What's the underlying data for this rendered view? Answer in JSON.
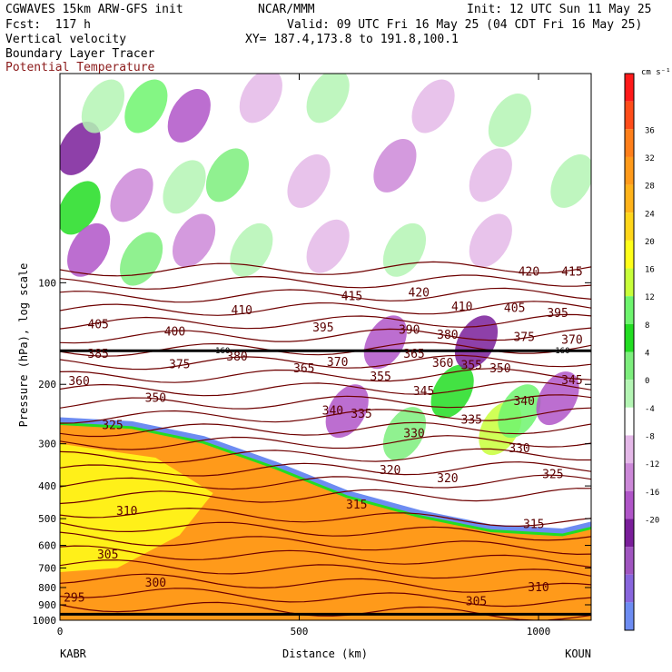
{
  "header": {
    "model": "CGWAVES 15km ARW-GFS init",
    "org": "NCAR/MMM",
    "init": "Init: 12 UTC Sun 11 May 25",
    "fcst": "Fcst:  117 h",
    "valid": "Valid: 09 UTC Fri 16 May 25 (04 CDT Fri 16 May 25)",
    "field1": "Vertical velocity",
    "xy": "XY= 187.4,173.8 to 191.8,100.1",
    "field2": "Boundary Layer Tracer",
    "field3": "Potential Temperature",
    "field3_color": "#8b1a1a"
  },
  "chart_data": {
    "type": "heatmap",
    "title": "Vertical velocity / Boundary Layer Tracer / Potential Temperature cross section",
    "xlabel": "Distance (km)",
    "ylabel": "Pressure (hPa), log scale",
    "x_ticks": [
      "0",
      "500",
      "1000"
    ],
    "x_tick_values": [
      0,
      500,
      1000
    ],
    "xlim": [
      0,
      1110
    ],
    "y_ticks": [
      "100",
      "200",
      "300",
      "400",
      "500",
      "600",
      "700",
      "800",
      "900",
      "1000"
    ],
    "y_tick_values": [
      100,
      200,
      300,
      400,
      500,
      600,
      700,
      800,
      900,
      1000
    ],
    "ylim": [
      1000,
      24
    ],
    "x_endpoints": {
      "left": "KABR",
      "right": "KOUN"
    },
    "colorbar": {
      "unit": "cm s⁻¹",
      "labels": [
        "36",
        "32",
        "28",
        "24",
        "20",
        "16",
        "12",
        "8",
        "4",
        "0",
        "-4",
        "-8",
        "-12",
        "-16",
        "-20"
      ],
      "colors": [
        "#ff1a1a",
        "#ff4d1a",
        "#ff7f1a",
        "#ff9a1a",
        "#ffb31a",
        "#ffd61a",
        "#ffff1a",
        "#c8ff3a",
        "#6ef56e",
        "#22dd22",
        "#7dee7d",
        "#b4f5b4",
        "#ffffff",
        "#e4b8e8",
        "#cc88d8",
        "#b055c8",
        "#7a1e9a",
        "#a055c0",
        "#8866dd",
        "#6d8cf2"
      ]
    },
    "theta_contours": {
      "levels": [
        295,
        300,
        305,
        310,
        315,
        320,
        325,
        330,
        335,
        340,
        345,
        350,
        355,
        360,
        365,
        370,
        375,
        380,
        385,
        390,
        395,
        400,
        405,
        410,
        415,
        420
      ],
      "labels": [
        {
          "text": "295",
          "x": 30,
          "p": 860
        },
        {
          "text": "300",
          "x": 200,
          "p": 775
        },
        {
          "text": "305",
          "x": 100,
          "p": 640
        },
        {
          "text": "305",
          "x": 870,
          "p": 880
        },
        {
          "text": "310",
          "x": 140,
          "p": 475
        },
        {
          "text": "310",
          "x": 1000,
          "p": 800
        },
        {
          "text": "315",
          "x": 620,
          "p": 455
        },
        {
          "text": "315",
          "x": 990,
          "p": 520
        },
        {
          "text": "320",
          "x": 690,
          "p": 360
        },
        {
          "text": "320",
          "x": 810,
          "p": 380
        },
        {
          "text": "325",
          "x": 110,
          "p": 265
        },
        {
          "text": "325",
          "x": 1030,
          "p": 370
        },
        {
          "text": "330",
          "x": 740,
          "p": 280
        },
        {
          "text": "330",
          "x": 960,
          "p": 310
        },
        {
          "text": "335",
          "x": 630,
          "p": 245
        },
        {
          "text": "335",
          "x": 860,
          "p": 255
        },
        {
          "text": "340",
          "x": 570,
          "p": 240
        },
        {
          "text": "340",
          "x": 970,
          "p": 225
        },
        {
          "text": "345",
          "x": 760,
          "p": 210
        },
        {
          "text": "345",
          "x": 1070,
          "p": 195
        },
        {
          "text": "350",
          "x": 200,
          "p": 220
        },
        {
          "text": "350",
          "x": 920,
          "p": 180
        },
        {
          "text": "355",
          "x": 670,
          "p": 190
        },
        {
          "text": "355",
          "x": 860,
          "p": 176
        },
        {
          "text": "360",
          "x": 40,
          "p": 196
        },
        {
          "text": "360",
          "x": 800,
          "p": 173
        },
        {
          "text": "365",
          "x": 510,
          "p": 180
        },
        {
          "text": "365",
          "x": 740,
          "p": 163
        },
        {
          "text": "370",
          "x": 580,
          "p": 172
        },
        {
          "text": "370",
          "x": 1070,
          "p": 148
        },
        {
          "text": "375",
          "x": 250,
          "p": 175
        },
        {
          "text": "375",
          "x": 970,
          "p": 145
        },
        {
          "text": "380",
          "x": 370,
          "p": 166
        },
        {
          "text": "380",
          "x": 810,
          "p": 143
        },
        {
          "text": "385",
          "x": 80,
          "p": 163
        },
        {
          "text": "390",
          "x": 730,
          "p": 138
        },
        {
          "text": "395",
          "x": 550,
          "p": 136
        },
        {
          "text": "395",
          "x": 1040,
          "p": 123
        },
        {
          "text": "400",
          "x": 240,
          "p": 140
        },
        {
          "text": "405",
          "x": 80,
          "p": 133
        },
        {
          "text": "405",
          "x": 950,
          "p": 119
        },
        {
          "text": "410",
          "x": 380,
          "p": 121
        },
        {
          "text": "410",
          "x": 840,
          "p": 118
        },
        {
          "text": "415",
          "x": 610,
          "p": 110
        },
        {
          "text": "415",
          "x": 1070,
          "p": 93
        },
        {
          "text": "420",
          "x": 750,
          "p": 107
        },
        {
          "text": "420",
          "x": 980,
          "p": 93
        }
      ],
      "tropopause_marker": [
        {
          "text": "160",
          "x": 340,
          "p": 159
        },
        {
          "text": "160",
          "x": 1050,
          "p": 159
        }
      ]
    },
    "terrain_pressure_hPa": {
      "x": [
        0,
        300,
        600,
        900,
        1110
      ],
      "p": [
        960,
        960,
        960,
        960,
        960
      ]
    },
    "grid": false,
    "legend": "colorbar-right"
  }
}
